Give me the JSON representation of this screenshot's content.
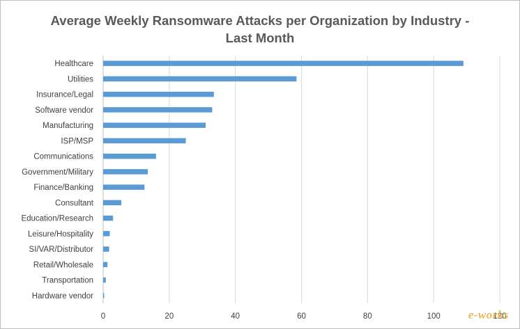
{
  "chart_data": {
    "type": "bar",
    "orientation": "horizontal",
    "title_lines": [
      "Average Weekly Ransomware Attacks per Organization by Industry -",
      "Last Month"
    ],
    "categories": [
      "Healthcare",
      "Utilities",
      "Insurance/Legal",
      "Software vendor",
      "Manufacturing",
      "ISP/MSP",
      "Communications",
      "Government/Military",
      "Finance/Banking",
      "Consultant",
      "Education/Research",
      "Leisure/Hospitality",
      "SI/VAR/Distributor",
      "Retail/Wholesale",
      "Transportation",
      "Hardware vendor"
    ],
    "values": [
      109,
      58.5,
      33.5,
      33,
      31,
      25,
      16,
      13.5,
      12.5,
      5.5,
      3,
      2,
      1.8,
      1.3,
      0.8,
      0.3
    ],
    "xlim": [
      0,
      120
    ],
    "xticks": [
      "0",
      "20",
      "40",
      "60",
      "80",
      "100",
      "120"
    ],
    "xlabel": "",
    "ylabel": "",
    "grid": "vertical",
    "legend": "none",
    "bar_color": "#5b9bd5"
  },
  "watermark": {
    "text_prefix": "e-",
    "text_suffix": "works"
  }
}
